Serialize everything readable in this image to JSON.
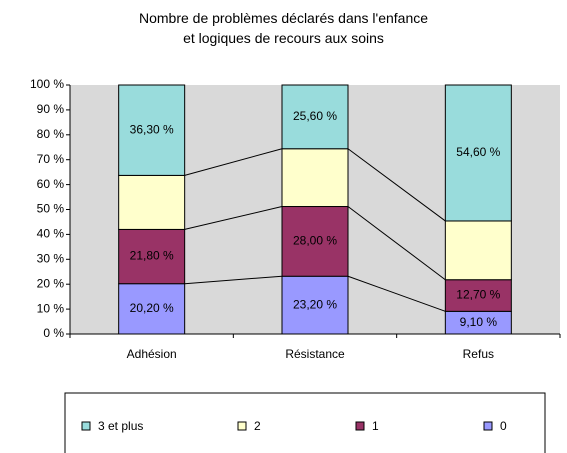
{
  "chart_data": {
    "type": "stacked_bar",
    "title": "Nombre de problèmes déclarés dans l'enfance\net logiques de recours aux soins",
    "categories": [
      "Adhésion",
      "Résistance",
      "Refus"
    ],
    "series": [
      {
        "name": "0",
        "color": "#9999ff",
        "values": [
          20.2,
          23.2,
          9.1
        ],
        "value_labels": [
          "20,20 %",
          "23,20 %",
          "9,10 %"
        ]
      },
      {
        "name": "1",
        "color": "#993366",
        "values": [
          21.8,
          28.0,
          12.7
        ],
        "value_labels": [
          "21,80 %",
          "28,00 %",
          "12,70 %"
        ]
      },
      {
        "name": "2",
        "color": "#ffffcc",
        "values": [
          21.7,
          23.2,
          23.6
        ]
      },
      {
        "name": "3 et plus",
        "color": "#99dcdc",
        "values": [
          36.3,
          25.6,
          54.6
        ],
        "value_labels": [
          "36,30 %",
          "25,60 %",
          "54,60 %"
        ]
      }
    ],
    "ylim": [
      0,
      100
    ],
    "yticks": [
      {
        "value": 0,
        "label": "0 %"
      },
      {
        "value": 10,
        "label": "10 %"
      },
      {
        "value": 20,
        "label": "20 %"
      },
      {
        "value": 30,
        "label": "30 %"
      },
      {
        "value": 40,
        "label": "40 %"
      },
      {
        "value": 50,
        "label": "50 %"
      },
      {
        "value": 60,
        "label": "60 %"
      },
      {
        "value": 70,
        "label": "70 %"
      },
      {
        "value": 80,
        "label": "80 %"
      },
      {
        "value": 90,
        "label": "90 %"
      },
      {
        "value": 100,
        "label": "100 %"
      }
    ],
    "legend": "bottom"
  }
}
